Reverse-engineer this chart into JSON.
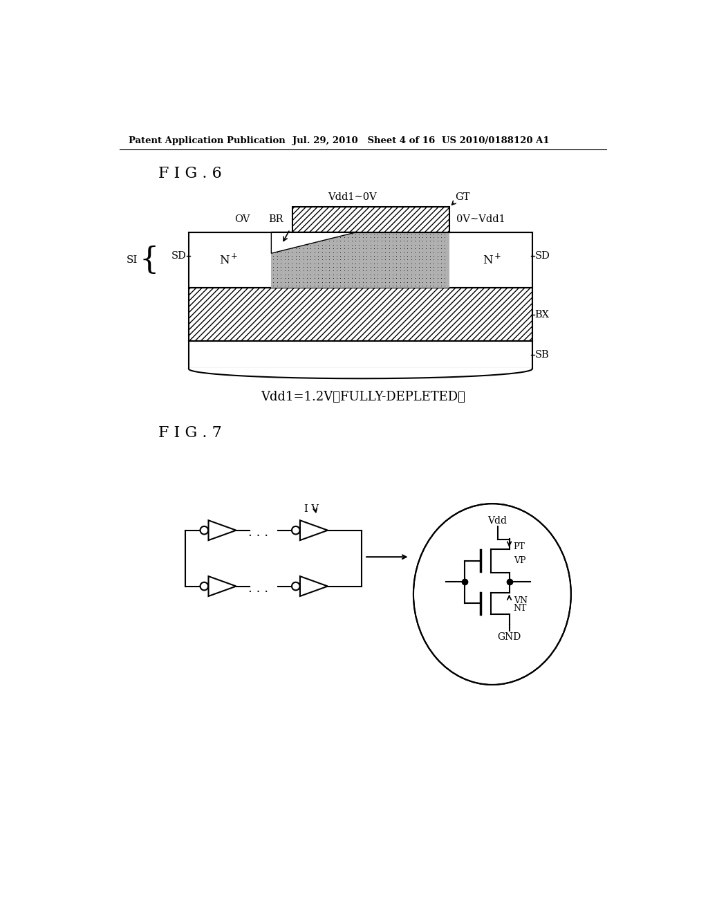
{
  "header_left": "Patent Application Publication",
  "header_mid": "Jul. 29, 2010   Sheet 4 of 16",
  "header_right": "US 2010/0188120 A1",
  "fig6_title": "F I G . 6",
  "fig7_title": "F I G . 7",
  "caption": "Vdd1=1.2V（FULLY-DEPLETED）",
  "bg_color": "#ffffff",
  "line_color": "#000000"
}
